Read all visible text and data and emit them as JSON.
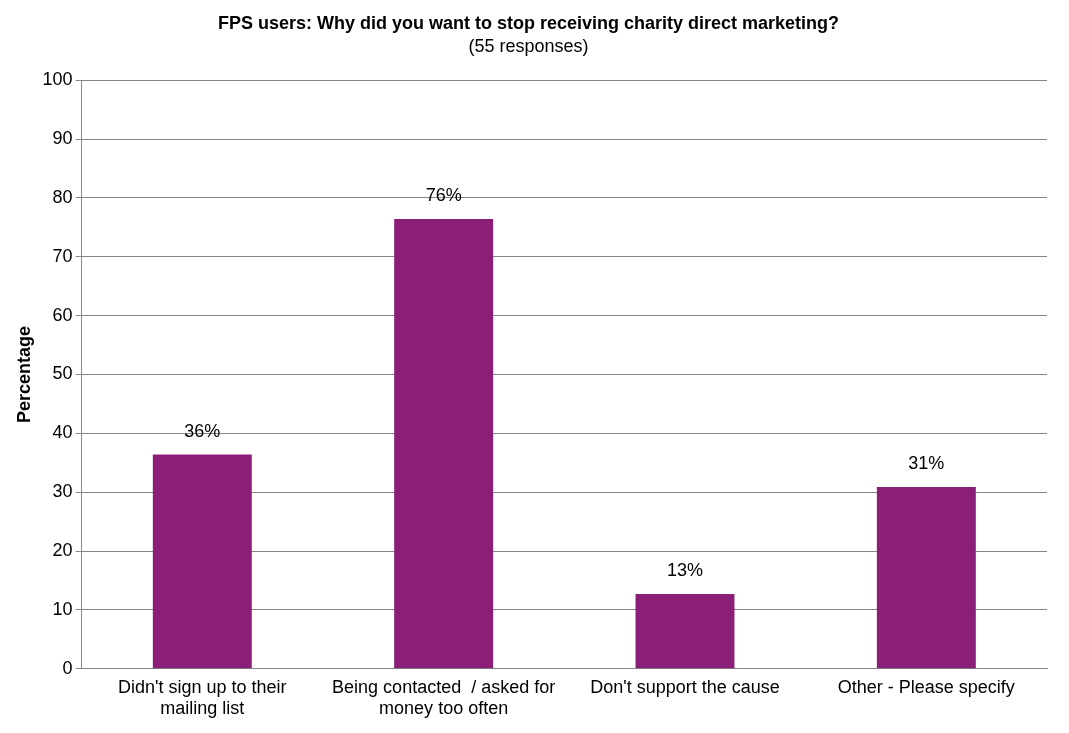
{
  "chart_data": {
    "type": "bar",
    "title": "FPS users: Why did you want to stop receiving charity direct marketing?",
    "subtitle": "(55 responses)",
    "ylabel": "Percentage",
    "categories": [
      "Didn't sign up to their mailing list",
      "Being contacted  / asked for money too often",
      "Don't support the cause",
      "Other - Please specify"
    ],
    "values": [
      36.4,
      76.4,
      12.7,
      30.9
    ],
    "value_labels": [
      "36%",
      "76%",
      "13%",
      "31%"
    ],
    "color": "#8b1f78",
    "ylim": [
      0,
      100
    ],
    "yticks": [
      0,
      10,
      20,
      30,
      40,
      50,
      60,
      70,
      80,
      90,
      100
    ],
    "grid": "y",
    "legend": false
  }
}
